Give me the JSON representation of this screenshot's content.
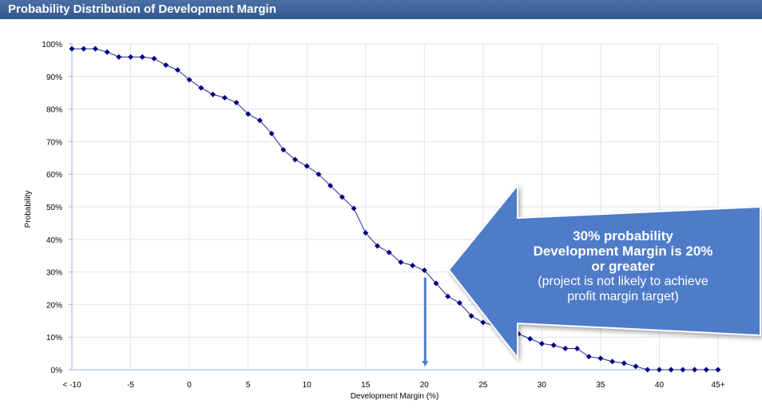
{
  "header": {
    "title": "Probability Distribution of Development Margin"
  },
  "chart_data": {
    "type": "line",
    "xlabel": "Development Margin (%)",
    "ylabel": "Probability",
    "x": [
      -10,
      -9,
      -8,
      -7,
      -6,
      -5,
      -4,
      -3,
      -2,
      -1,
      0,
      1,
      2,
      3,
      4,
      5,
      6,
      7,
      8,
      9,
      10,
      11,
      12,
      13,
      14,
      15,
      16,
      17,
      18,
      19,
      20,
      21,
      22,
      23,
      24,
      25,
      26,
      27,
      28,
      29,
      30,
      31,
      32,
      33,
      34,
      35,
      36,
      37,
      38,
      39,
      40,
      41,
      42,
      43,
      44,
      45
    ],
    "values": [
      98.5,
      98.5,
      98.5,
      97.5,
      96,
      96,
      96,
      95.5,
      93.5,
      92,
      89,
      86.5,
      84.5,
      83.5,
      82,
      78.5,
      76.5,
      72.5,
      67.5,
      64.5,
      62.5,
      60,
      56.5,
      53,
      49.5,
      42,
      38,
      36,
      33,
      32,
      30.5,
      26.5,
      22.5,
      20.5,
      16.5,
      14.5,
      13.5,
      12,
      11,
      9.5,
      8,
      7.5,
      6.5,
      6.5,
      4,
      3.5,
      2.5,
      2,
      1,
      0,
      0,
      0,
      0,
      0,
      0,
      0
    ],
    "xlim": [
      -10,
      45
    ],
    "ylim": [
      0,
      100
    ],
    "x_ticks": [
      {
        "v": -10,
        "label": "< -10"
      },
      {
        "v": -5,
        "label": "-5"
      },
      {
        "v": 0,
        "label": "0"
      },
      {
        "v": 5,
        "label": "5"
      },
      {
        "v": 10,
        "label": "10"
      },
      {
        "v": 15,
        "label": "15"
      },
      {
        "v": 20,
        "label": "20"
      },
      {
        "v": 25,
        "label": "25"
      },
      {
        "v": 30,
        "label": "30"
      },
      {
        "v": 35,
        "label": "35"
      },
      {
        "v": 40,
        "label": "40"
      },
      {
        "v": 45,
        "label": "45+"
      }
    ],
    "y_ticks": [
      {
        "v": 0,
        "label": "0%"
      },
      {
        "v": 10,
        "label": "10%"
      },
      {
        "v": 20,
        "label": "20%"
      },
      {
        "v": 30,
        "label": "30%"
      },
      {
        "v": 40,
        "label": "40%"
      },
      {
        "v": 50,
        "label": "50%"
      },
      {
        "v": 60,
        "label": "60%"
      },
      {
        "v": 70,
        "label": "70%"
      },
      {
        "v": 80,
        "label": "80%"
      },
      {
        "v": 90,
        "label": "90%"
      },
      {
        "v": 100,
        "label": "100%"
      }
    ],
    "grid": true,
    "series_color": "#000080",
    "marker_x": 20,
    "annotation": {
      "line1": "30% probability",
      "line2": "Development Margin is 20%",
      "line3": "or greater",
      "line4": "(project is not likely to achieve",
      "line5": "profit margin target)"
    },
    "annotation_color": "#4f7cc9"
  }
}
